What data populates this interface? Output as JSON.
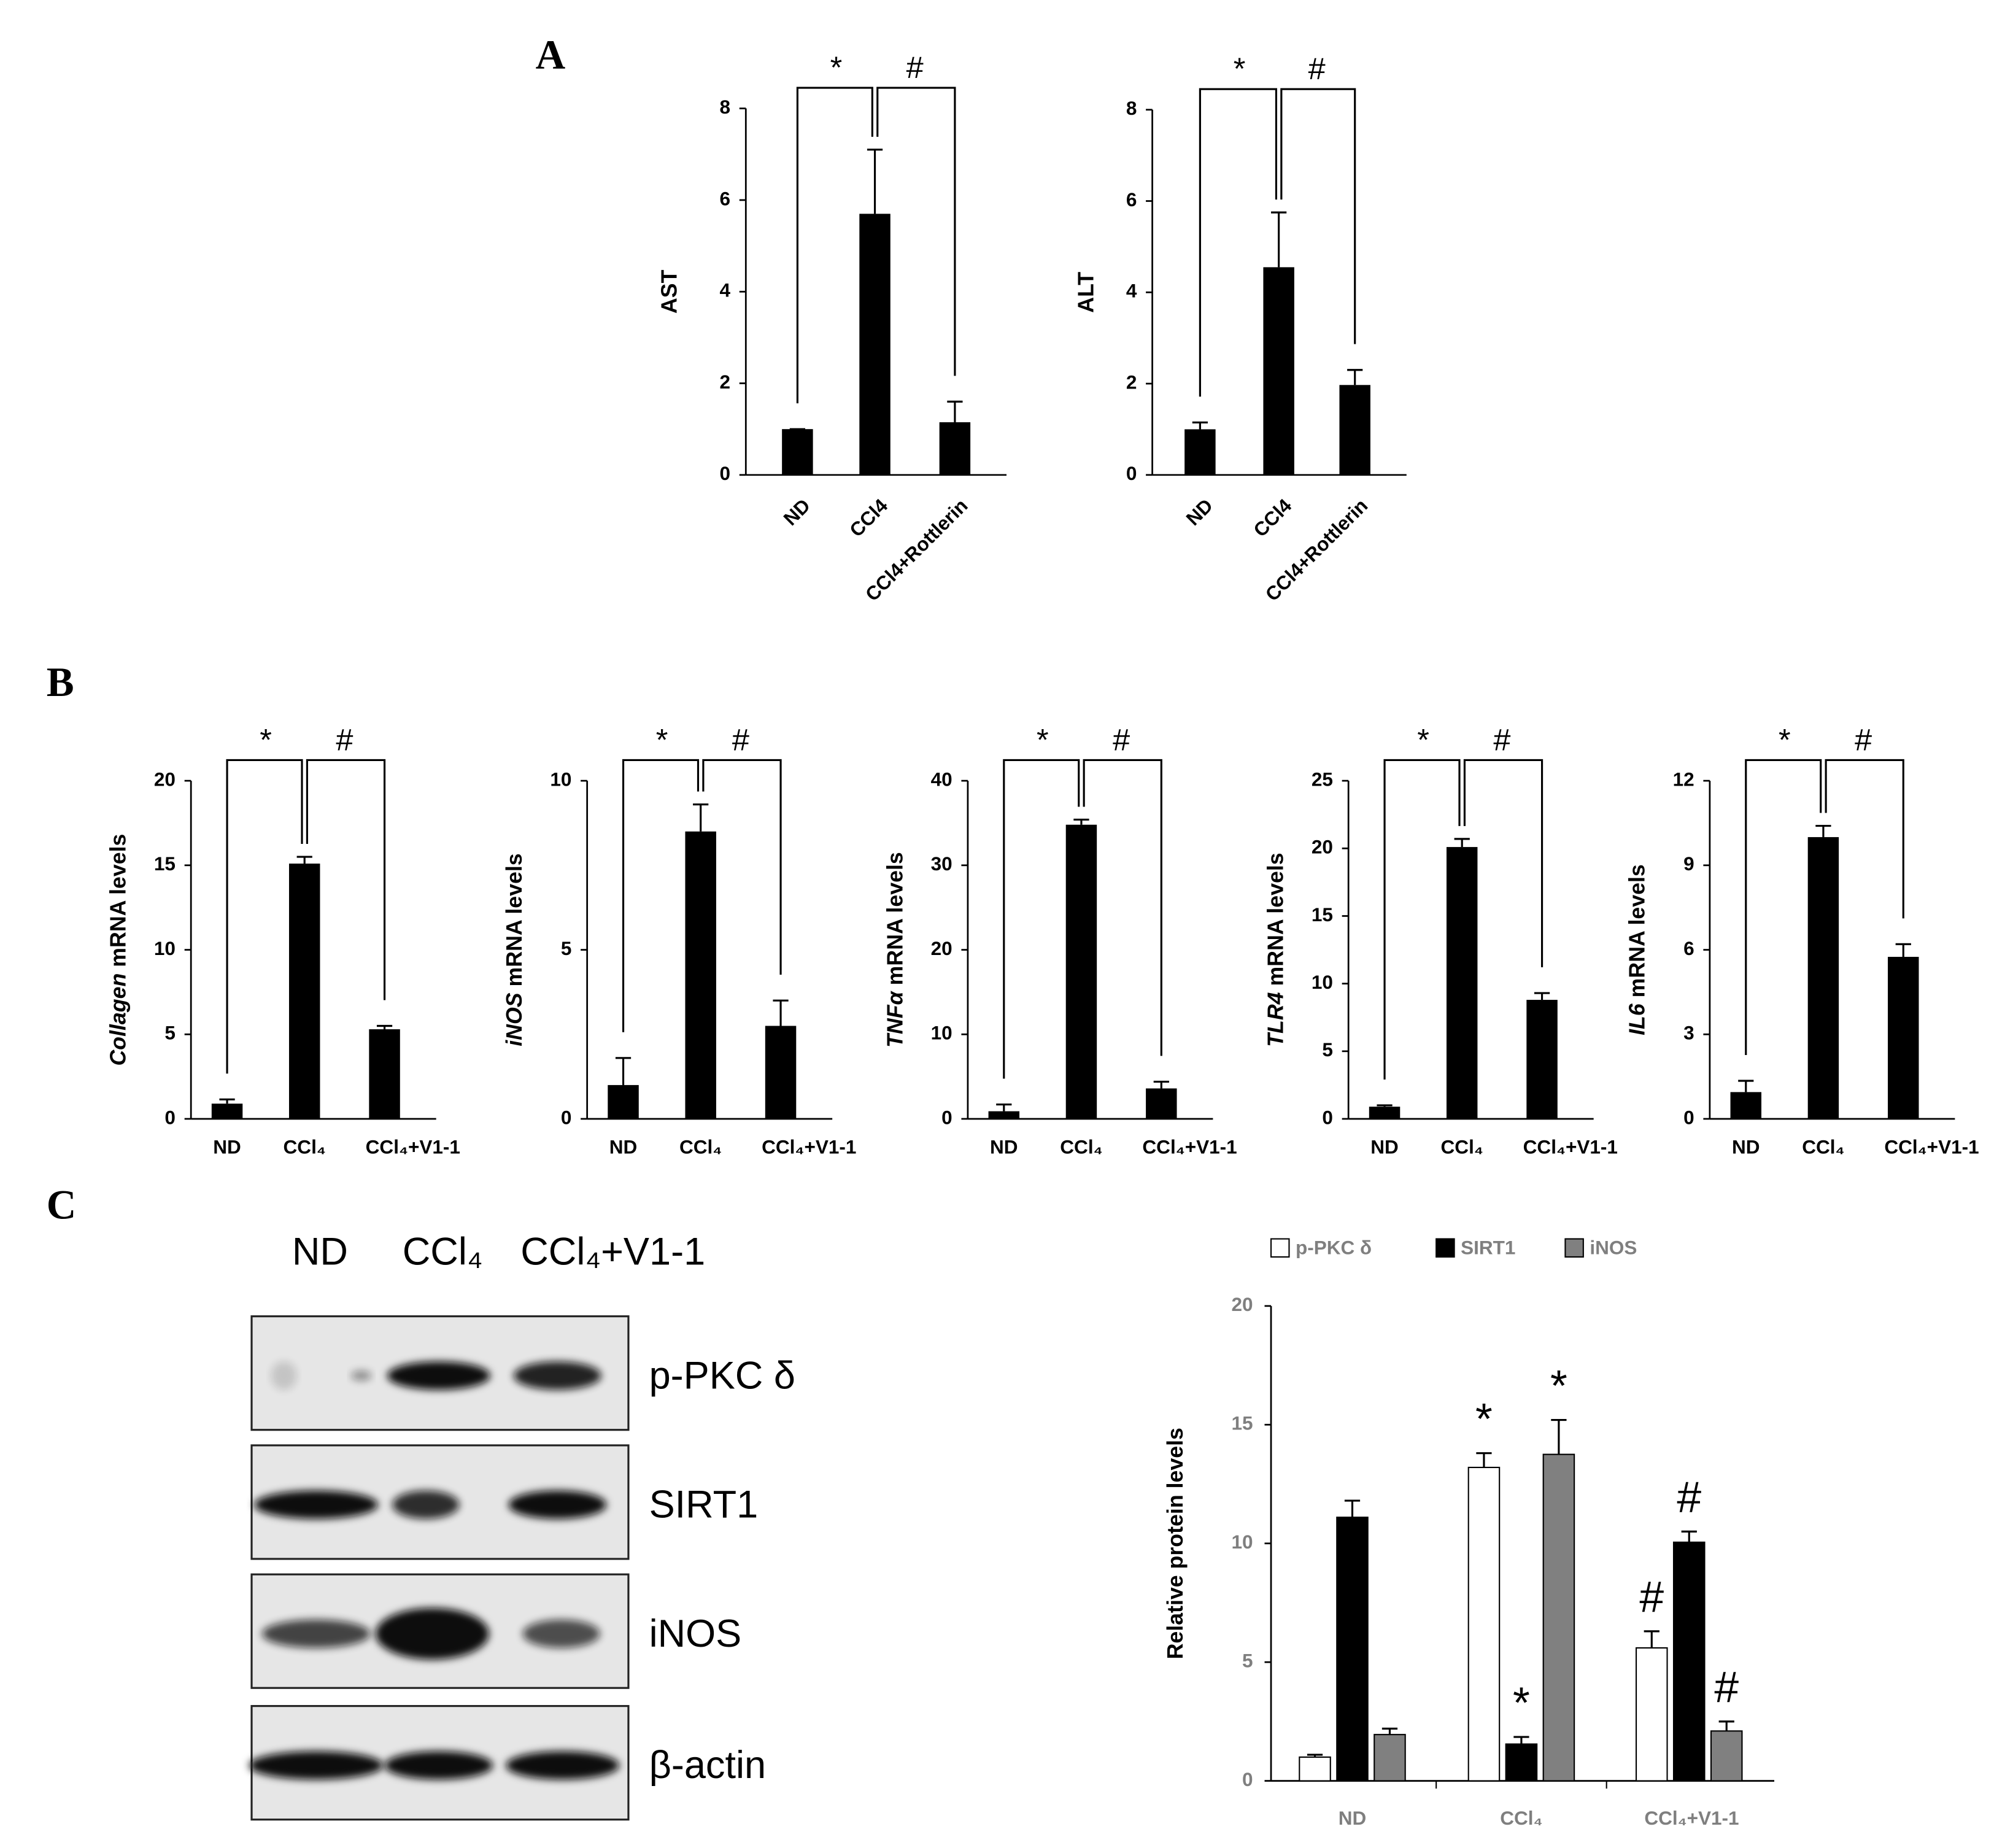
{
  "panel_labels": [
    "A",
    "B",
    "C"
  ],
  "chart_data": [
    {
      "type": "bar",
      "y_label": "AST",
      "categories": [
        "ND",
        "CCl4",
        "CCl4+Rottlerin"
      ],
      "values": [
        1,
        5.7,
        1.15
      ],
      "errors": [
        0,
        1.4,
        0.45
      ],
      "color": "#000000",
      "ylim": [
        0,
        8
      ],
      "yticks": [
        0,
        2,
        4,
        6,
        8
      ],
      "brackets": [
        "*",
        "#"
      ]
    },
    {
      "type": "bar",
      "y_label": "ALT",
      "categories": [
        "ND",
        "CCl4",
        "CCl4+Rottlerin"
      ],
      "values": [
        1,
        4.55,
        1.97
      ],
      "errors": [
        0.15,
        1.2,
        0.33
      ],
      "color": "#000000",
      "ylim": [
        0,
        8
      ],
      "yticks": [
        0,
        2,
        4,
        6,
        8
      ],
      "brackets": [
        "*",
        "#"
      ]
    },
    {
      "type": "bar",
      "y_label_gene": "Collagen",
      "y_label": " mRNA levels",
      "categories": [
        "ND",
        "CCl₄",
        "CCl₄+V1-1"
      ],
      "values": [
        0.9,
        15.1,
        5.3
      ],
      "errors": [
        0.25,
        0.4,
        0.2
      ],
      "color": "#000000",
      "ylim": [
        0,
        20
      ],
      "yticks": [
        0,
        5,
        10,
        15,
        20
      ],
      "brackets": [
        "*",
        "#"
      ]
    },
    {
      "type": "bar",
      "y_label_gene": "iNOS",
      "y_label": " mRNA levels",
      "categories": [
        "ND",
        "CCl₄",
        "CCl₄+V1-1"
      ],
      "values": [
        1,
        8.5,
        2.75
      ],
      "errors": [
        0.8,
        0.8,
        0.75
      ],
      "color": "#000000",
      "ylim": [
        0,
        10
      ],
      "yticks": [
        0,
        5,
        10
      ],
      "brackets": [
        "*",
        "#"
      ]
    },
    {
      "type": "bar",
      "y_label_gene": "TNFα",
      "y_label": " mRNA levels",
      "categories": [
        "ND",
        "CCl₄",
        "CCl₄+V1-1"
      ],
      "values": [
        0.9,
        34.8,
        3.6
      ],
      "errors": [
        0.8,
        0.6,
        0.8
      ],
      "color": "#000000",
      "ylim": [
        0,
        40
      ],
      "yticks": [
        0,
        10,
        20,
        30,
        40
      ],
      "brackets": [
        "*",
        "#"
      ]
    },
    {
      "type": "bar",
      "y_label_gene": "TLR4",
      "y_label": " mRNA levels",
      "categories": [
        "ND",
        "CCl₄",
        "CCl₄+V1-1"
      ],
      "values": [
        0.9,
        20.1,
        8.8
      ],
      "errors": [
        0.1,
        0.6,
        0.5
      ],
      "color": "#000000",
      "ylim": [
        0,
        25
      ],
      "yticks": [
        0,
        5,
        10,
        15,
        20,
        25
      ],
      "brackets": [
        "*",
        "#"
      ]
    },
    {
      "type": "bar",
      "y_label_gene": "IL6",
      "y_label": " mRNA levels",
      "categories": [
        "ND",
        "CCl₄",
        "CCl₄+V1-1"
      ],
      "values": [
        0.95,
        10,
        5.75
      ],
      "errors": [
        0.4,
        0.4,
        0.45
      ],
      "color": "#000000",
      "ylim": [
        0,
        12
      ],
      "yticks": [
        0,
        3,
        6,
        9,
        12
      ],
      "brackets": [
        "*",
        "#"
      ]
    },
    {
      "type": "grouped_bar",
      "y_label": "Relative protein levels",
      "categories": [
        "ND",
        "CCl₄",
        "CCl₄+V1-1"
      ],
      "legend": "top",
      "series": [
        {
          "name": "p-PKC δ",
          "color": "#ffffff",
          "values": [
            1,
            13.2,
            5.6
          ],
          "errors": [
            0.1,
            0.6,
            0.7
          ],
          "markers": [
            null,
            "*",
            "#"
          ]
        },
        {
          "name": "SIRT1",
          "color": "#000000",
          "values": [
            11.1,
            1.55,
            10.05
          ],
          "errors": [
            0.7,
            0.3,
            0.45
          ],
          "markers": [
            null,
            "*",
            "#"
          ]
        },
        {
          "name": "iNOS",
          "color": "#808080",
          "values": [
            1.95,
            13.75,
            2.1
          ],
          "errors": [
            0.25,
            1.45,
            0.4
          ],
          "markers": [
            null,
            "*",
            "#"
          ]
        }
      ],
      "ylim": [
        0,
        20
      ],
      "yticks": [
        0,
        5,
        10,
        15,
        20
      ]
    }
  ],
  "blot": {
    "lanes": [
      "ND",
      "CCl₄",
      "CCl₄+V1-1"
    ],
    "rows": [
      "p-PKC δ",
      "SIRT1",
      "iNOS",
      "β-actin"
    ]
  }
}
